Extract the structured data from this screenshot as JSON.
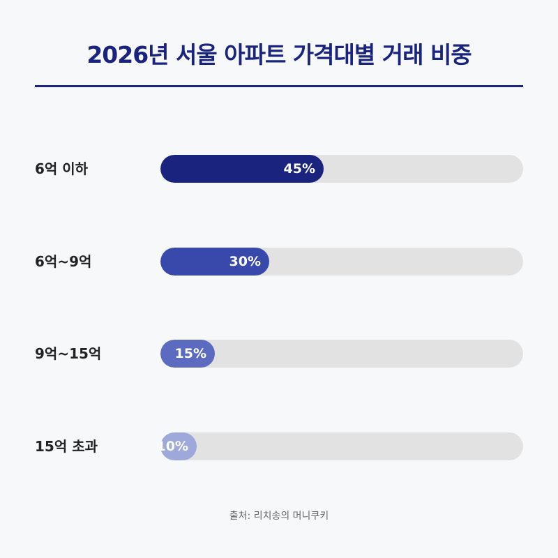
{
  "chart_data": {
    "type": "bar",
    "orientation": "horizontal",
    "title": "2026년 서울 아파트 가격대별 거래 비중",
    "categories": [
      "6억 이하",
      "6억~9억",
      "9억~15억",
      "15억 초과"
    ],
    "values": [
      45,
      30,
      15,
      10
    ],
    "value_labels": [
      "45%",
      "30%",
      "15%",
      "10%"
    ],
    "xlim": [
      0,
      100
    ],
    "grid": false,
    "colors": [
      "#1a237e",
      "#3949ab",
      "#5c6bc0",
      "#9fa8da"
    ],
    "track_color": "#e2e2e2",
    "title_color": "#1a237e"
  },
  "source": "출처: 리치송의 머니쿠키"
}
